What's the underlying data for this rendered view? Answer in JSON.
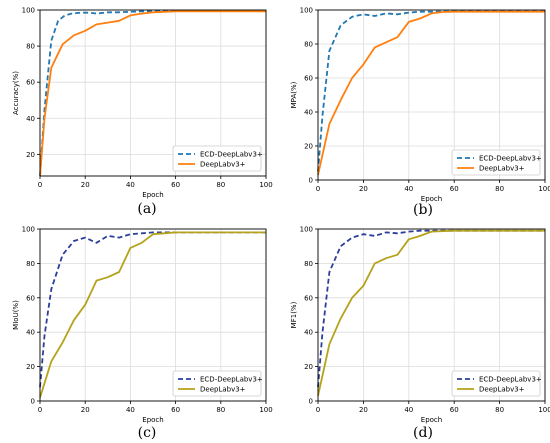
{
  "chart_data": [
    {
      "type": "line",
      "panel_label": "(a)",
      "xlabel": "Epoch",
      "ylabel": "Accuracy(%)",
      "xlim": [
        0,
        100
      ],
      "ylim": [
        8,
        100
      ],
      "xticks": [
        "0",
        "20",
        "40",
        "60",
        "80",
        "100"
      ],
      "yticks": [
        "20",
        "40",
        "60",
        "80",
        "100"
      ],
      "grid": true,
      "legend_position": "bottom-right",
      "series": [
        {
          "name": "ECD-DeepLabv3+",
          "color": "#1f77b4",
          "style": "dashed",
          "x": [
            0,
            2,
            5,
            8,
            11,
            14,
            18,
            22,
            25,
            30,
            35,
            40,
            45,
            50,
            55,
            60,
            70,
            80,
            90,
            100
          ],
          "y": [
            8,
            45,
            83,
            94,
            97,
            98,
            98.5,
            98.5,
            98,
            98.7,
            98.7,
            99,
            99.2,
            99.3,
            99.4,
            99.5,
            99.5,
            99.5,
            99.5,
            99.5
          ]
        },
        {
          "name": "DeepLabv3+",
          "color": "#ff7f0e",
          "style": "solid",
          "x": [
            0,
            2,
            5,
            10,
            15,
            20,
            25,
            30,
            35,
            40,
            45,
            50,
            55,
            60,
            70,
            80,
            90,
            100
          ],
          "y": [
            8,
            40,
            68,
            81,
            86,
            88.5,
            92,
            93,
            94,
            97,
            98,
            98.7,
            99,
            99.2,
            99.3,
            99.3,
            99.3,
            99.3
          ]
        }
      ]
    },
    {
      "type": "line",
      "panel_label": "(b)",
      "xlabel": "Epoch",
      "ylabel": "MPA(%)",
      "xlim": [
        0,
        100
      ],
      "ylim": [
        0,
        100
      ],
      "xticks": [
        "0",
        "20",
        "40",
        "60",
        "80",
        "100"
      ],
      "yticks": [
        "0",
        "20",
        "40",
        "60",
        "80",
        "100"
      ],
      "grid": true,
      "legend_position": "bottom-right",
      "series": [
        {
          "name": "ECD-DeepLabv3+",
          "color": "#1f77b4",
          "style": "dashed",
          "x": [
            0,
            2,
            5,
            10,
            15,
            20,
            25,
            30,
            35,
            40,
            45,
            50,
            60,
            70,
            80,
            90,
            100
          ],
          "y": [
            5,
            38,
            76,
            91,
            96,
            97.5,
            96.5,
            98,
            97.5,
            98.5,
            99,
            99,
            99.2,
            99.2,
            99.2,
            99.2,
            99.2
          ]
        },
        {
          "name": "DeepLabv3+",
          "color": "#ff7f0e",
          "style": "solid",
          "x": [
            0,
            5,
            10,
            15,
            20,
            25,
            30,
            35,
            40,
            45,
            50,
            55,
            60,
            70,
            80,
            90,
            100
          ],
          "y": [
            3,
            33,
            47,
            60,
            68,
            78,
            81,
            84,
            93,
            95,
            98,
            98.8,
            99,
            99,
            99,
            99,
            99
          ]
        }
      ]
    },
    {
      "type": "line",
      "panel_label": "(c)",
      "xlabel": "Epoch",
      "ylabel": "MIoU(%)",
      "xlim": [
        0,
        100
      ],
      "ylim": [
        0,
        100
      ],
      "xticks": [
        "0",
        "20",
        "40",
        "60",
        "80",
        "100"
      ],
      "yticks": [
        "0",
        "20",
        "40",
        "60",
        "80",
        "100"
      ],
      "grid": true,
      "legend_position": "bottom-right",
      "series": [
        {
          "name": "ECD-DeepLabv3+",
          "color": "#2b3f9a",
          "style": "dashed",
          "x": [
            0,
            2,
            5,
            10,
            15,
            20,
            25,
            30,
            35,
            40,
            45,
            50,
            60,
            70,
            80,
            90,
            100
          ],
          "y": [
            8,
            38,
            65,
            85,
            93,
            95,
            92,
            96,
            95,
            97,
            97.5,
            98,
            98,
            98,
            98,
            98,
            98
          ]
        },
        {
          "name": "DeepLabv3+",
          "color": "#b5a21b",
          "style": "solid",
          "x": [
            0,
            5,
            10,
            15,
            20,
            25,
            30,
            35,
            40,
            45,
            50,
            55,
            60,
            70,
            80,
            90,
            100
          ],
          "y": [
            2,
            23,
            34,
            47,
            56,
            70,
            72,
            75,
            89,
            92,
            97,
            97.5,
            98,
            98,
            98,
            98,
            98
          ]
        }
      ]
    },
    {
      "type": "line",
      "panel_label": "(d)",
      "xlabel": "Epoch",
      "ylabel": "MF1(%)",
      "xlim": [
        0,
        100
      ],
      "ylim": [
        0,
        100
      ],
      "xticks": [
        "0",
        "20",
        "40",
        "60",
        "80",
        "100"
      ],
      "yticks": [
        "0",
        "20",
        "40",
        "60",
        "80",
        "100"
      ],
      "grid": true,
      "legend_position": "bottom-right",
      "series": [
        {
          "name": "ECD-DeepLabv3+",
          "color": "#2b3f9a",
          "style": "dashed",
          "x": [
            0,
            2,
            5,
            10,
            15,
            20,
            25,
            30,
            35,
            40,
            45,
            50,
            60,
            70,
            80,
            90,
            100
          ],
          "y": [
            8,
            40,
            75,
            90,
            95,
            97,
            96,
            98,
            97.5,
            98.5,
            99,
            99,
            99,
            99,
            99,
            99,
            99
          ]
        },
        {
          "name": "DeepLabv3+",
          "color": "#b5a21b",
          "style": "solid",
          "x": [
            0,
            5,
            10,
            15,
            20,
            25,
            30,
            35,
            40,
            45,
            50,
            55,
            60,
            70,
            80,
            90,
            100
          ],
          "y": [
            3,
            33,
            48,
            60,
            67,
            80,
            83,
            85,
            94,
            96,
            98.5,
            98.8,
            99,
            99,
            99,
            99,
            99
          ]
        }
      ]
    }
  ]
}
